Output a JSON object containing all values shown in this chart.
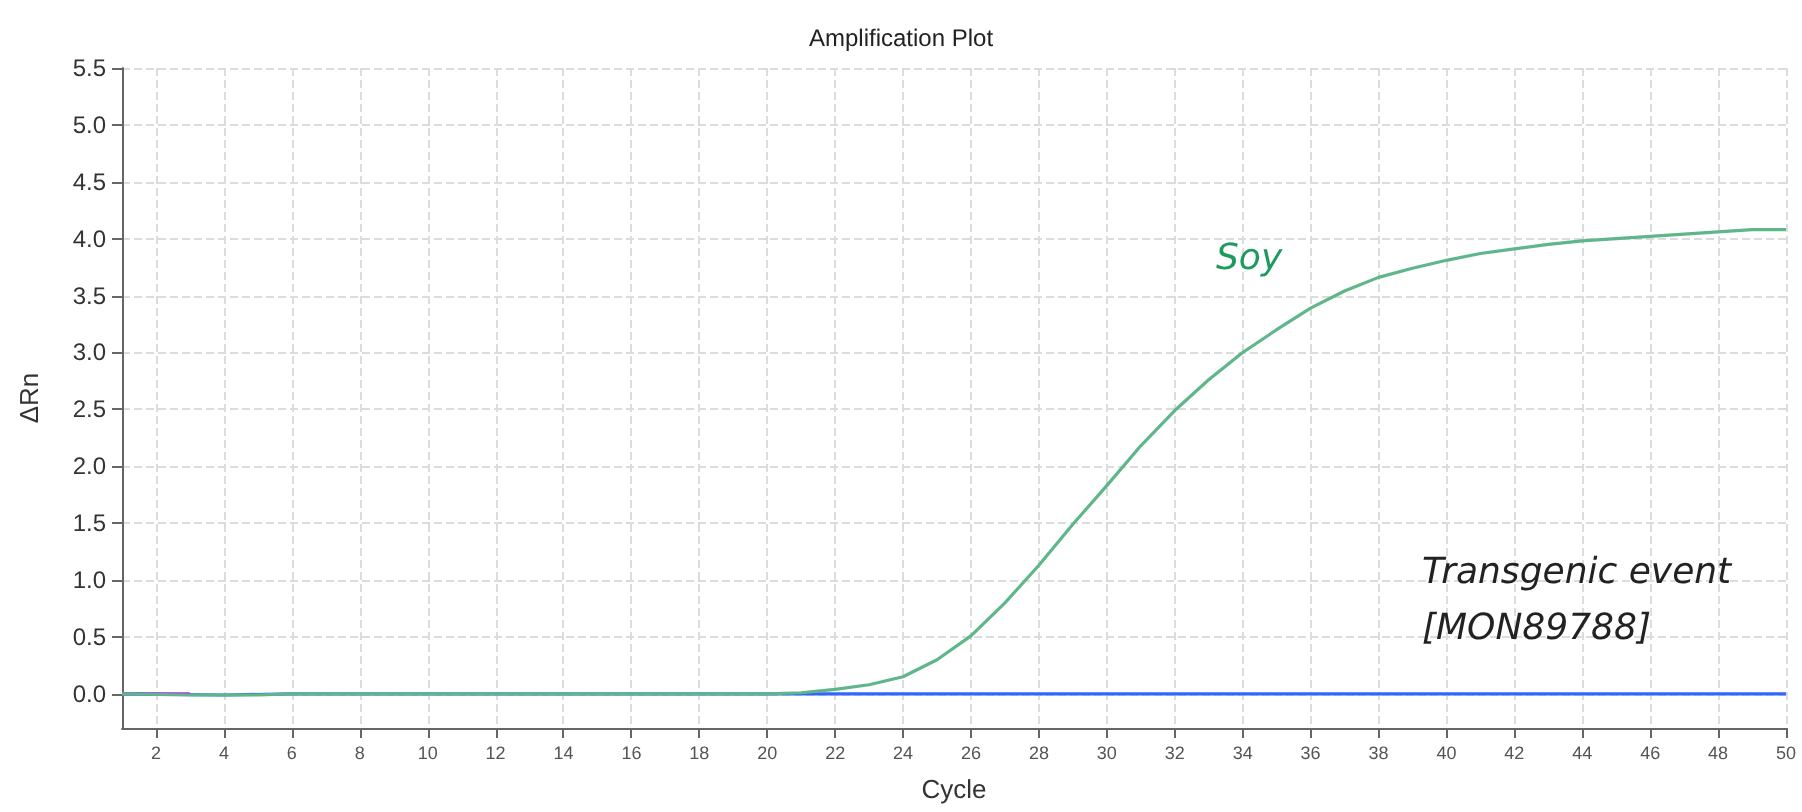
{
  "chart_data": {
    "type": "line",
    "title": "Amplification Plot",
    "xlabel": "Cycle",
    "ylabel": "ΔRn",
    "xlim": [
      1,
      50
    ],
    "xticks": [
      2,
      4,
      6,
      8,
      10,
      12,
      14,
      16,
      18,
      20,
      22,
      24,
      26,
      28,
      30,
      32,
      34,
      36,
      38,
      40,
      42,
      44,
      46,
      48,
      50
    ],
    "ylim": [
      -0.3,
      5.5
    ],
    "yticks": [
      {
        "value": 0,
        "label": "0.0"
      },
      {
        "value": 0.5,
        "label": "0.5"
      },
      {
        "value": 1,
        "label": "1.0"
      },
      {
        "value": 1.5,
        "label": "1.5"
      },
      {
        "value": 2,
        "label": "2.0"
      },
      {
        "value": 2.5,
        "label": "2.5"
      },
      {
        "value": 3,
        "label": "3.0"
      },
      {
        "value": 3.5,
        "label": "3.5"
      },
      {
        "value": 4,
        "label": "4.0"
      },
      {
        "value": 4.5,
        "label": "4.5"
      },
      {
        "value": 5,
        "label": "5.0"
      },
      {
        "value": 5.5,
        "label": "5.5"
      }
    ],
    "grid": true,
    "marker": "none",
    "line_style": "solid",
    "series": [
      {
        "color": "#ff00ff",
        "x": [
          1,
          2,
          3
        ],
        "values": [
          0,
          0,
          0
        ]
      },
      {
        "color": "#3366ff",
        "x": [
          1,
          4,
          6,
          10,
          20,
          30,
          40,
          50
        ],
        "values": [
          0,
          -0.01,
          0,
          0,
          0,
          0,
          0,
          0
        ]
      },
      {
        "color": "#5fb68a",
        "x": [
          1,
          3,
          4,
          5,
          6,
          10,
          15,
          20,
          21,
          22,
          23,
          24,
          25,
          26,
          27,
          28,
          29,
          30,
          31,
          32,
          33,
          34,
          35,
          36,
          37,
          38,
          39,
          40,
          41,
          42,
          43,
          44,
          46,
          48,
          49,
          50
        ],
        "values": [
          0,
          -0.01,
          -0.01,
          -0.01,
          0,
          0,
          0,
          0,
          0.01,
          0.04,
          0.08,
          0.15,
          0.3,
          0.51,
          0.8,
          1.13,
          1.49,
          1.83,
          2.18,
          2.49,
          2.76,
          3.0,
          3.2,
          3.39,
          3.54,
          3.66,
          3.74,
          3.81,
          3.87,
          3.91,
          3.95,
          3.98,
          4.02,
          4.06,
          4.08,
          4.08
        ]
      }
    ],
    "annotations": [
      "Soy",
      "Transgenic event [MON89788]"
    ]
  }
}
